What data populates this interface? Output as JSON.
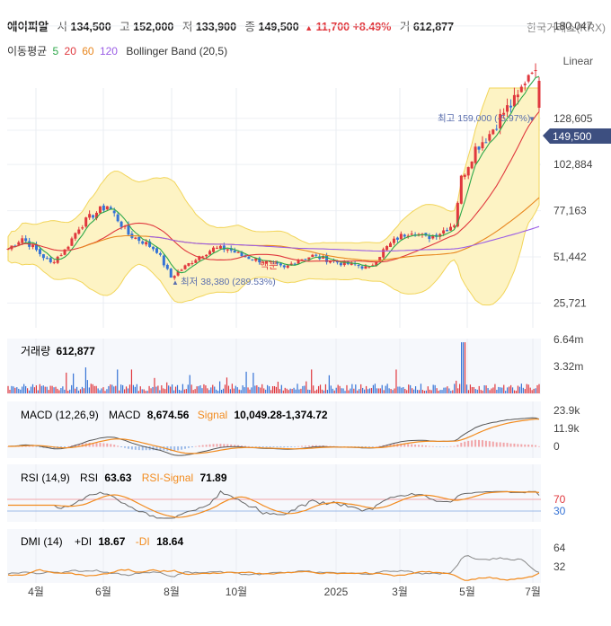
{
  "header": {
    "name": "에이피알",
    "open_label": "시",
    "open": "134,500",
    "high_label": "고",
    "high": "152,000",
    "low_label": "저",
    "low": "133,900",
    "close_label": "종",
    "close": "149,500",
    "change_arrow": "▲",
    "change": "11,700",
    "change_pct": "+8.49%",
    "volume_label": "거",
    "volume": "612,877",
    "exchange": "한국거래소(KRX)"
  },
  "indicators_row": {
    "ma_label": "이동평균",
    "ma_periods": [
      "5",
      "20",
      "60",
      "120"
    ],
    "bollinger_label": "Bollinger Band (20,5)"
  },
  "scale_mode": "Linear",
  "colors": {
    "up": "#e0383e",
    "down": "#3573d6",
    "ma5": "#2ea84a",
    "ma20": "#e0383e",
    "ma60": "#e8861e",
    "ma120": "#9b5de5",
    "bollinger_fill": "#fdf3c4",
    "bollinger_line": "#f2d55a",
    "badge": "#3d4f80",
    "signal": "#f28b1e",
    "di_minus": "#f28b1e",
    "di_plus": "#888888"
  },
  "chart_data": [
    {
      "type": "candlestick",
      "name": "price",
      "y_ticks": [
        "180,047",
        "128,605",
        "102,884",
        "77,163",
        "51,442",
        "25,721"
      ],
      "y_tick_values": [
        180047,
        128605,
        102884,
        77163,
        51442,
        25721
      ],
      "current_price": "149,500",
      "current_price_value": 149500,
      "x_ticks": [
        "4월",
        "6월",
        "8월",
        "10월",
        "2025",
        "3월",
        "5월",
        "7월"
      ],
      "annotations": {
        "high": "최고 159,000 (-5.97%)",
        "low": "최저 38,380 (289.53%)",
        "split": "액분"
      },
      "close_path": [
        [
          0,
          56000
        ],
        [
          4,
          62000
        ],
        [
          8,
          55000
        ],
        [
          12,
          48000
        ],
        [
          16,
          55000
        ],
        [
          20,
          68000
        ],
        [
          24,
          75000
        ],
        [
          28,
          80000
        ],
        [
          30,
          75000
        ],
        [
          34,
          64000
        ],
        [
          38,
          60000
        ],
        [
          42,
          55000
        ],
        [
          46,
          40000
        ],
        [
          50,
          46000
        ],
        [
          54,
          52000
        ],
        [
          58,
          56000
        ],
        [
          62,
          56000
        ],
        [
          66,
          52000
        ],
        [
          70,
          50000
        ],
        [
          74,
          48000
        ],
        [
          78,
          45000
        ],
        [
          82,
          50000
        ],
        [
          86,
          52000
        ],
        [
          90,
          50000
        ],
        [
          94,
          48000
        ],
        [
          98,
          47000
        ],
        [
          102,
          45000
        ],
        [
          106,
          55000
        ],
        [
          110,
          62000
        ],
        [
          114,
          66000
        ],
        [
          118,
          62000
        ],
        [
          122,
          65000
        ],
        [
          126,
          70000
        ],
        [
          128,
          95000
        ],
        [
          132,
          112000
        ],
        [
          136,
          120000
        ],
        [
          140,
          132000
        ],
        [
          144,
          140000
        ],
        [
          146,
          150000
        ],
        [
          148,
          158000
        ],
        [
          149,
          152000
        ],
        [
          150,
          149500
        ]
      ],
      "series_names": [
        "MA5",
        "MA20",
        "MA60",
        "MA120",
        "Bollinger Band"
      ]
    },
    {
      "type": "bar",
      "name": "volume",
      "label": "거래량",
      "value": "612,877",
      "y_ticks": [
        "6.64m",
        "3.32m"
      ],
      "y_tick_values": [
        6640000,
        3320000
      ]
    },
    {
      "type": "line",
      "name": "MACD",
      "label": "MACD (12,26,9)",
      "macd_label": "MACD",
      "macd": "8,674.56",
      "signal_label": "Signal",
      "signal": "10,049.28",
      "histogram": "-1,374.72",
      "y_ticks": [
        "23.9k",
        "11.9k",
        "0"
      ],
      "y_tick_values": [
        23900,
        11900,
        0
      ]
    },
    {
      "type": "line",
      "name": "RSI",
      "label": "RSI (14,9)",
      "rsi_label": "RSI",
      "rsi": "63.63",
      "signal_label": "RSI-Signal",
      "signal": "71.89",
      "y_ticks": [
        "70",
        "30"
      ],
      "y_tick_values": [
        70,
        30
      ]
    },
    {
      "type": "line",
      "name": "DMI",
      "label": "DMI (14)",
      "plus_label": "+DI",
      "plus": "18.67",
      "minus_label": "-DI",
      "minus": "18.64",
      "y_ticks": [
        "64",
        "32"
      ],
      "y_tick_values": [
        64,
        32
      ]
    }
  ]
}
